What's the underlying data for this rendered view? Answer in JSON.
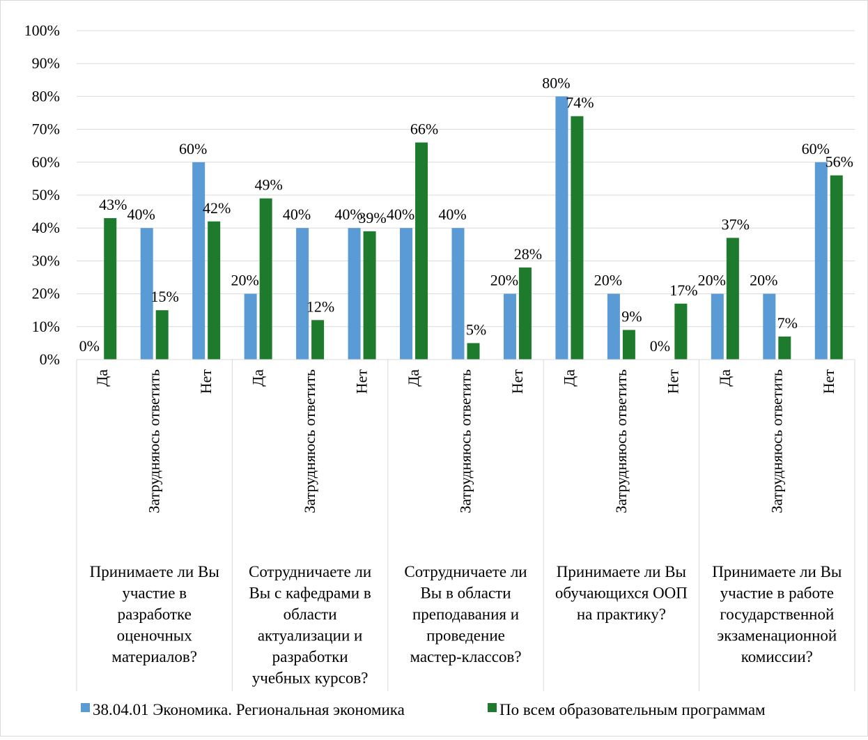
{
  "chart_data": {
    "type": "bar",
    "ylim": [
      0,
      100
    ],
    "yticks": [
      "0%",
      "10%",
      "20%",
      "30%",
      "40%",
      "50%",
      "60%",
      "70%",
      "80%",
      "90%",
      "100%"
    ],
    "grid": true,
    "legend_position": "bottom",
    "groups": [
      {
        "label_lines": [
          "Принимаете ли Вы",
          "участие в",
          "разработке",
          "оценочных",
          "материалов?"
        ],
        "categories": [
          "Да",
          "Затрудняюсь ответить",
          "Нет"
        ]
      },
      {
        "label_lines": [
          "Сотрудничаете ли",
          "Вы с кафедрами в",
          "области",
          "актуализации и",
          "разработки",
          "учебных курсов?"
        ],
        "categories": [
          "Да",
          "Затрудняюсь ответить",
          "Нет"
        ]
      },
      {
        "label_lines": [
          "Сотрудничаете ли",
          "Вы в области",
          "преподавания и",
          "проведение",
          "мастер-классов?"
        ],
        "categories": [
          "Да",
          "Затрудняюсь ответить",
          "Нет"
        ]
      },
      {
        "label_lines": [
          "Принимаете ли Вы",
          "обучающихся ООП",
          "на практику?"
        ],
        "categories": [
          "Да",
          "Затрудняюсь ответить",
          "Нет"
        ]
      },
      {
        "label_lines": [
          "Принимаете ли Вы",
          "участие в работе",
          "государственной",
          "экзаменационной",
          "комиссии?"
        ],
        "categories": [
          "Да",
          "Затрудняюсь ответить",
          "Нет"
        ]
      }
    ],
    "series": [
      {
        "name": "38.04.01 Экономика. Региональная экономика",
        "color": "#5B9BD5",
        "values": [
          0,
          40,
          60,
          20,
          40,
          40,
          40,
          40,
          20,
          80,
          20,
          0,
          20,
          20,
          60
        ],
        "labels": [
          "0%",
          "40%",
          "60%",
          "20%",
          "40%",
          "40%",
          "40%",
          "40%",
          "20%",
          "80%",
          "20%",
          "0%",
          "20%",
          "20%",
          "60%"
        ]
      },
      {
        "name": "По всем образовательным программам",
        "color": "#1E7B2E",
        "values": [
          43,
          15,
          42,
          49,
          12,
          39,
          66,
          5,
          28,
          74,
          9,
          17,
          37,
          7,
          56
        ],
        "labels": [
          "43%",
          "15%",
          "42%",
          "49%",
          "12%",
          "39%",
          "66%",
          "5%",
          "28%",
          "74%",
          "9%",
          "17%",
          "37%",
          "7%",
          "56%"
        ]
      }
    ]
  }
}
